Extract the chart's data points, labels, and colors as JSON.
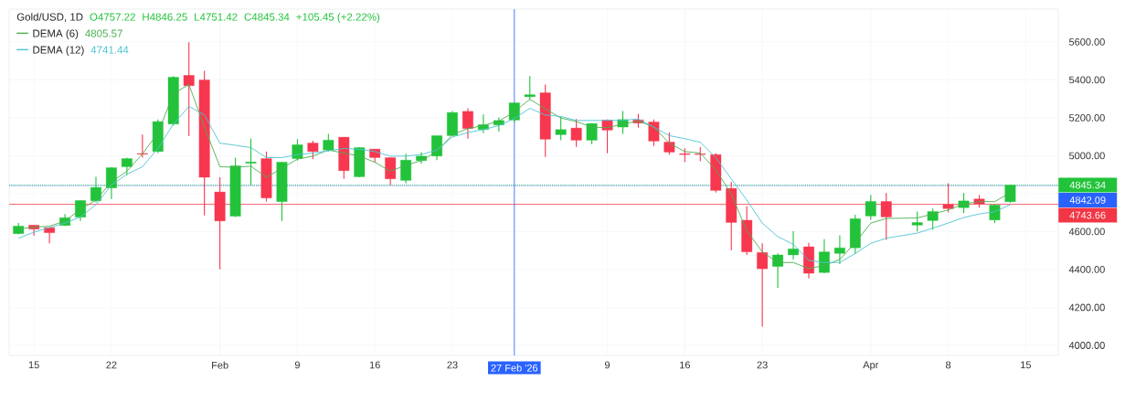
{
  "chart_data": {
    "type": "candlestick",
    "title": "Gold/USD, 1D",
    "annotations": [
      "O4757.22",
      "H4846.25",
      "L4751.42",
      "C4845.34",
      "+105.45 (+2.22%)",
      "4805.57",
      "4741.44"
    ],
    "categories": [
      null,
      "15",
      null,
      null,
      null,
      null,
      "22",
      null,
      null,
      null,
      null,
      null,
      null,
      "Feb",
      null,
      null,
      null,
      null,
      "9",
      null,
      null,
      null,
      null,
      "16",
      null,
      null,
      null,
      null,
      "23",
      null,
      null,
      null,
      "27 Feb '26",
      null,
      null,
      null,
      null,
      null,
      "9",
      null,
      null,
      null,
      null,
      "16",
      null,
      null,
      null,
      null,
      "23",
      null,
      null,
      null,
      null,
      null,
      null,
      "Apr",
      null,
      null,
      null,
      null,
      "8",
      null,
      null,
      null,
      null,
      "15"
    ],
    "ohlc": [
      [
        4589,
        4645,
        4585,
        4629
      ],
      [
        4634,
        4634,
        4578,
        4613
      ],
      [
        4621,
        4621,
        4538,
        4594
      ],
      [
        4632,
        4693,
        4630,
        4673
      ],
      [
        4676,
        4764,
        4656,
        4764
      ],
      [
        4762,
        4889,
        4754,
        4833
      ],
      [
        4830,
        4940,
        4772,
        4937
      ],
      [
        4942,
        4990,
        4897,
        4985
      ],
      [
        5012,
        5112,
        4990,
        5008
      ],
      [
        5022,
        5191,
        5014,
        5180
      ],
      [
        5167,
        5420,
        5159,
        5414
      ],
      [
        5424,
        5598,
        5103,
        5369
      ],
      [
        5400,
        5448,
        4685,
        4886
      ],
      [
        4809,
        4886,
        4401,
        4656
      ],
      [
        4681,
        4990,
        4677,
        4947
      ],
      [
        4960,
        5091,
        4846,
        4967
      ],
      [
        4985,
        5022,
        4758,
        4777
      ],
      [
        4758,
        4966,
        4656,
        4966
      ],
      [
        4985,
        5087,
        4974,
        5058
      ],
      [
        5067,
        5079,
        4982,
        5022
      ],
      [
        5030,
        5115,
        5022,
        5082
      ],
      [
        5098,
        5098,
        4878,
        4921
      ],
      [
        4889,
        5046,
        4886,
        5043
      ],
      [
        5035,
        5035,
        4963,
        4990
      ],
      [
        4990,
        4990,
        4846,
        4878
      ],
      [
        4870,
        5010,
        4854,
        4977
      ],
      [
        4974,
        5019,
        4958,
        4998
      ],
      [
        4998,
        5106,
        4977,
        5106
      ],
      [
        5106,
        5236,
        5103,
        5228
      ],
      [
        5234,
        5250,
        5090,
        5143
      ],
      [
        5138,
        5218,
        5119,
        5164
      ],
      [
        5162,
        5202,
        5127,
        5186
      ],
      [
        5188,
        5279,
        5175,
        5279
      ],
      [
        5311,
        5420,
        5295,
        5322
      ],
      [
        5332,
        5375,
        4994,
        5087
      ],
      [
        5111,
        5207,
        5082,
        5138
      ],
      [
        5146,
        5194,
        5047,
        5082
      ],
      [
        5082,
        5170,
        5061,
        5170
      ],
      [
        5188,
        5191,
        5013,
        5135
      ],
      [
        5151,
        5236,
        5115,
        5191
      ],
      [
        5189,
        5221,
        5148,
        5172
      ],
      [
        5178,
        5191,
        5051,
        5077
      ],
      [
        5072,
        5122,
        5006,
        5019
      ],
      [
        5011,
        5039,
        4966,
        5006
      ],
      [
        5010,
        5045,
        4971,
        5006
      ],
      [
        5006,
        5014,
        4806,
        4817
      ],
      [
        4828,
        4862,
        4501,
        4648
      ],
      [
        4660,
        4734,
        4477,
        4493
      ],
      [
        4490,
        4538,
        4099,
        4404
      ],
      [
        4416,
        4485,
        4303,
        4477
      ],
      [
        4477,
        4602,
        4453,
        4509
      ],
      [
        4520,
        4541,
        4353,
        4380
      ],
      [
        4384,
        4560,
        4380,
        4493
      ],
      [
        4485,
        4581,
        4429,
        4514
      ],
      [
        4514,
        4689,
        4482,
        4668
      ],
      [
        4682,
        4794,
        4661,
        4759
      ],
      [
        4759,
        4803,
        4557,
        4677
      ],
      null,
      [
        4634,
        4706,
        4600,
        4648
      ],
      [
        4658,
        4721,
        4610,
        4706
      ],
      [
        4743,
        4855,
        4701,
        4721
      ],
      [
        4726,
        4803,
        4697,
        4762
      ],
      [
        4772,
        4793,
        4726,
        4746
      ],
      [
        4661,
        4743,
        4645,
        4740
      ],
      [
        4757.22,
        4846.25,
        4751.42,
        4845.34
      ],
      null
    ],
    "series": [
      {
        "name": "DEMA (6)",
        "type": "line",
        "color": "#4caf50",
        "values": [
          4613,
          4624,
          4628,
          4656,
          4717,
          4766,
          4862,
          4918,
          5010,
          5119,
          5327,
          5376,
          5151,
          4942,
          4939,
          4945,
          4886,
          4934,
          4982,
          4998,
          5030,
          5014,
          4998,
          4966,
          4918,
          4950,
          4974,
          5022,
          5111,
          5143,
          5159,
          5183,
          5231,
          5298,
          5247,
          5199,
          5180,
          5151,
          5148,
          5167,
          5183,
          5151,
          5066,
          5022,
          5014,
          4926,
          4798,
          4605,
          4493,
          4437,
          4437,
          4405,
          4421,
          4453,
          4541,
          4645,
          4669,
          null,
          4672,
          4693,
          4714,
          4746,
          4758,
          4758,
          4805.57,
          null
        ]
      },
      {
        "name": "DEMA (12)",
        "type": "line",
        "color": "#4dc4d4",
        "values": [
          4565,
          4597,
          4621,
          4645,
          4677,
          4742,
          4846,
          4902,
          4942,
          5038,
          5167,
          5260,
          5215,
          5066,
          5055,
          5043,
          4990,
          4990,
          5006,
          5014,
          5026,
          5038,
          5034,
          5022,
          4998,
          4998,
          5006,
          5030,
          5099,
          5122,
          5138,
          5159,
          5196,
          5250,
          5215,
          5207,
          5186,
          5186,
          5186,
          5186,
          5194,
          5151,
          5106,
          5090,
          5071,
          4990,
          4878,
          4766,
          4645,
          4573,
          4533,
          4448,
          4437,
          4437,
          4485,
          4538,
          4565,
          null,
          4592,
          4618,
          4645,
          4674,
          4693,
          4705,
          4741.44,
          null
        ]
      }
    ],
    "ylim": [
      3947,
      5773
    ],
    "yticks": [
      {
        "value": 4000,
        "label": "4000.00"
      },
      {
        "value": 4200,
        "label": "4200.00"
      },
      {
        "value": 4400,
        "label": "4400.00"
      },
      {
        "value": 4600,
        "label": "4600.00"
      },
      {
        "value": 4800,
        "label": null
      },
      {
        "value": 5000,
        "label": "5000.00"
      },
      {
        "value": 5200,
        "label": "5200.00"
      },
      {
        "value": 5400,
        "label": "5400.00"
      },
      {
        "value": 5600,
        "label": "5600.00"
      }
    ],
    "ref_lines": [
      {
        "axis": "y",
        "value": 4845.34,
        "label": "4845.34",
        "color": "#22c33a",
        "line_style": "dotted"
      },
      {
        "axis": "y",
        "value": 4842.09,
        "label": "4842.09",
        "color": "#2962ff",
        "line_style": "dotted"
      },
      {
        "axis": "y",
        "value": 4743.66,
        "label": "4743.66",
        "color": "#f23645",
        "line_style": "solid"
      },
      {
        "axis": "x",
        "value": "27 Feb '26",
        "color": "#2962ff",
        "line_style": "solid"
      }
    ],
    "grid": true,
    "legend": "top left",
    "marker": "none"
  }
}
